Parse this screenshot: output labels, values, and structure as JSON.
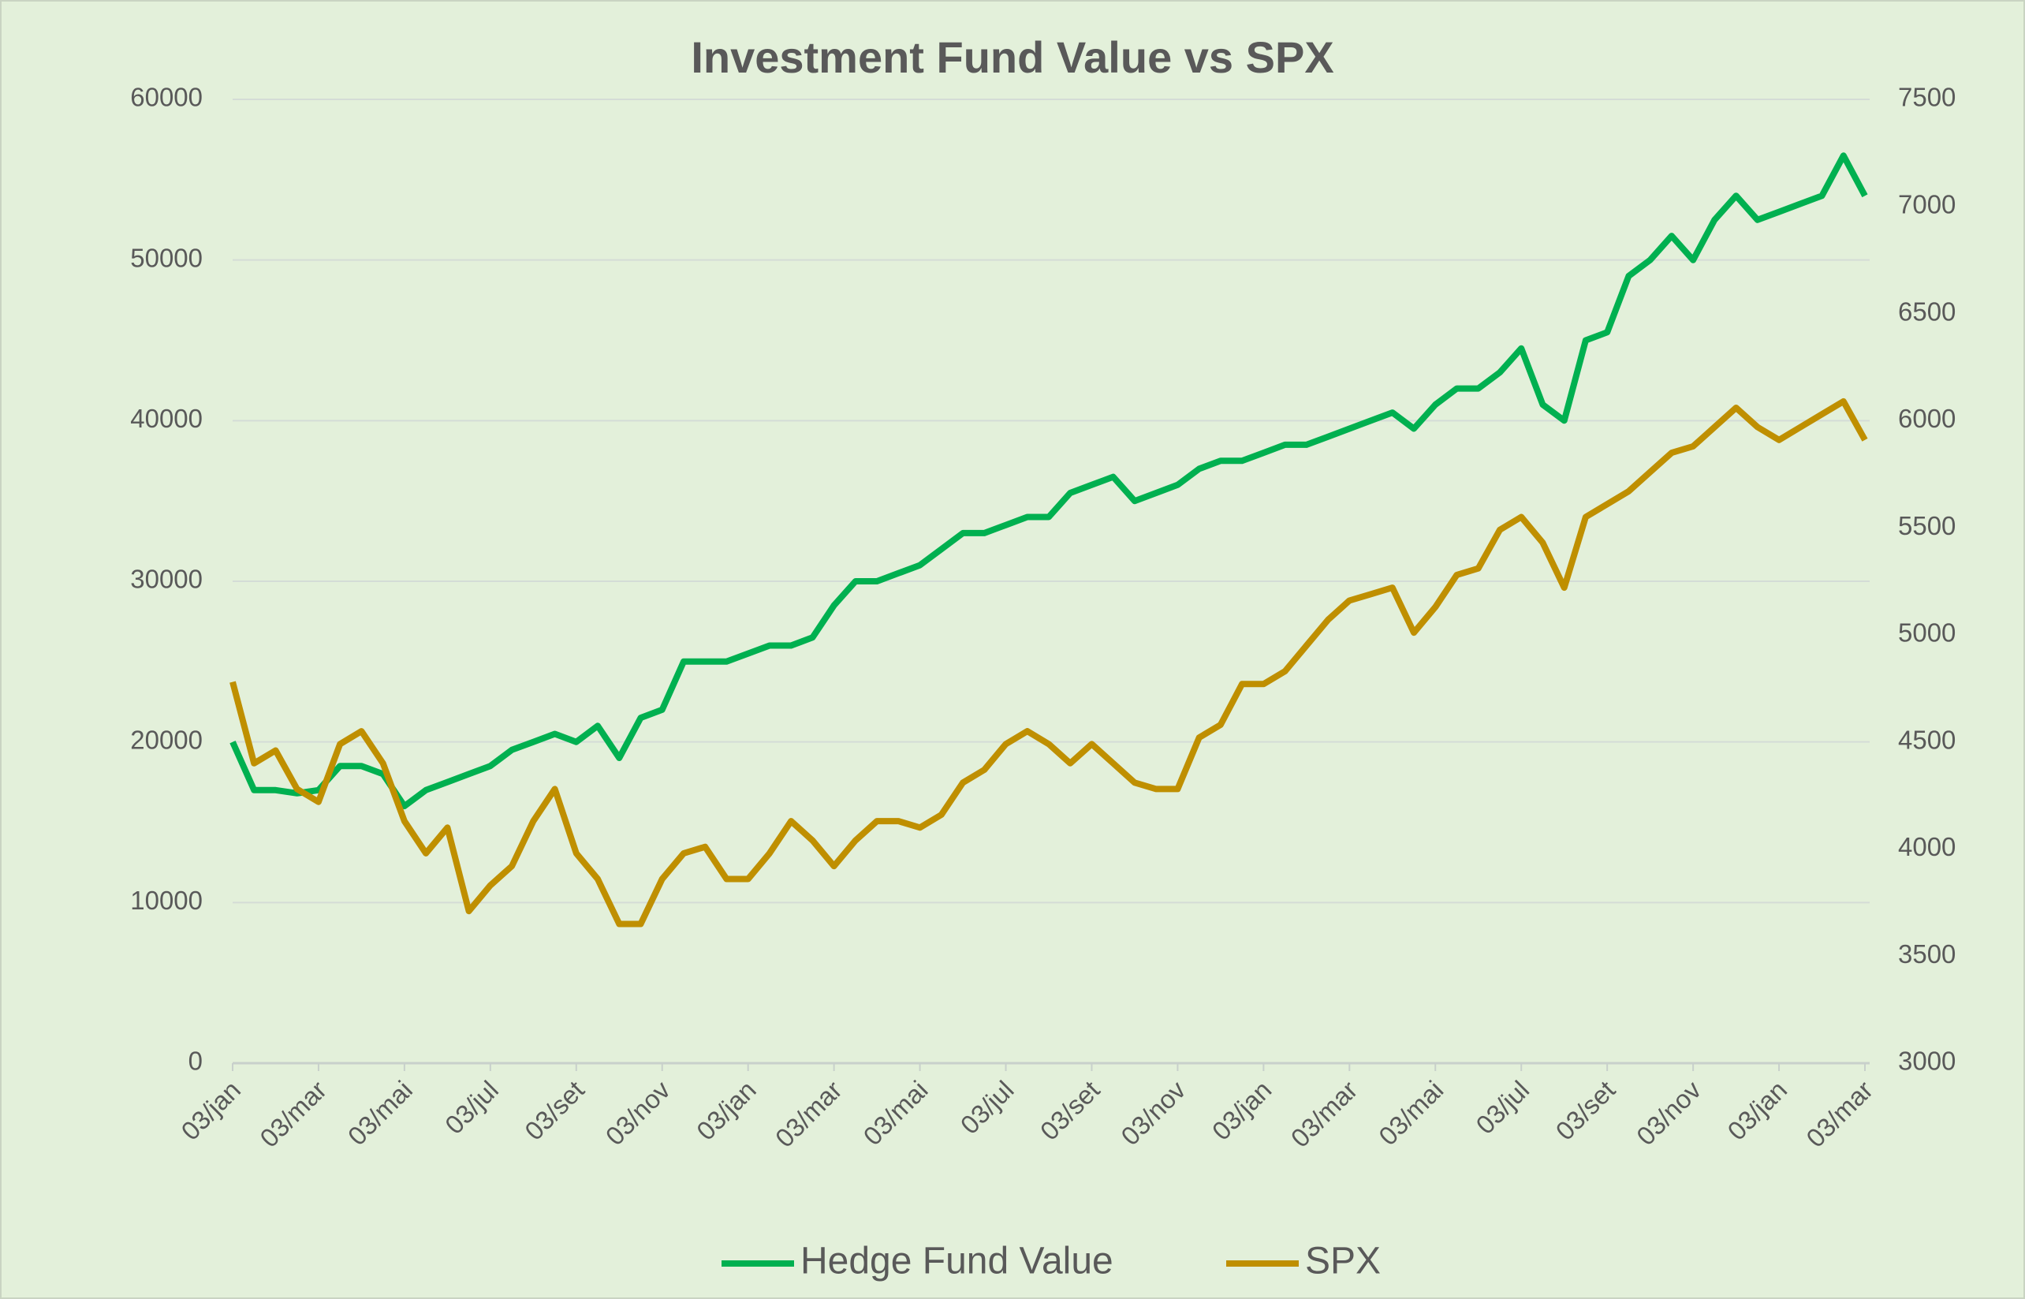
{
  "chart_data": {
    "type": "line",
    "title": "Investment Fund Value vs SPX",
    "categories": [
      "03/jan",
      null,
      null,
      null,
      "03/mar",
      null,
      null,
      null,
      "03/mai",
      null,
      null,
      null,
      "03/jul",
      null,
      null,
      null,
      "03/set",
      null,
      null,
      null,
      "03/nov",
      null,
      null,
      null,
      "03/jan",
      null,
      null,
      null,
      "03/mar",
      null,
      null,
      null,
      "03/mai",
      null,
      null,
      null,
      "03/jul",
      null,
      null,
      null,
      "03/set",
      null,
      null,
      null,
      "03/nov",
      null,
      null,
      null,
      "03/jan",
      null,
      null,
      null,
      "03/mar",
      null,
      null,
      null,
      "03/mai",
      null,
      null,
      null,
      "03/jul",
      null,
      null,
      null,
      "03/set",
      null,
      null,
      null,
      "03/nov",
      null,
      null,
      null,
      "03/jan",
      null,
      null,
      null,
      "03/mar"
    ],
    "series": [
      {
        "name": "Hedge Fund Value",
        "color": "#00b050",
        "values": [
          20000,
          17000,
          17000,
          16800,
          17000,
          18500,
          18500,
          18000,
          16000,
          17000,
          17500,
          18000,
          18500,
          19500,
          20000,
          20500,
          20000,
          21000,
          19000,
          21500,
          22000,
          25000,
          25000,
          25000,
          25500,
          26000,
          26000,
          26500,
          28500,
          30000,
          30000,
          30500,
          31000,
          32000,
          33000,
          33000,
          33500,
          34000,
          34000,
          35500,
          36000,
          36500,
          35000,
          35500,
          36000,
          37000,
          37500,
          37500,
          38000,
          38500,
          38500,
          39000,
          39500,
          40000,
          40500,
          39500,
          41000,
          42000,
          42000,
          43000,
          44500,
          41000,
          40000,
          45000,
          45500,
          49000,
          50000,
          51500,
          50000,
          52500,
          54000,
          52500,
          53000,
          53500,
          54000,
          56500,
          54000
        ]
      },
      {
        "name": "SPX",
        "color": "#bf8f00",
        "axis": "y2",
        "values": [
          4780,
          4400,
          4460,
          4280,
          4220,
          4490,
          4550,
          4400,
          4130,
          3980,
          4100,
          3710,
          3830,
          3920,
          4130,
          4280,
          3980,
          3860,
          3650,
          3650,
          3860,
          3980,
          4010,
          3860,
          3860,
          3980,
          4130,
          4040,
          3920,
          4040,
          4130,
          4130,
          4100,
          4160,
          4310,
          4370,
          4490,
          4550,
          4490,
          4400,
          4490,
          4400,
          4310,
          4280,
          4280,
          4520,
          4580,
          4770,
          4770,
          4830,
          4950,
          5070,
          5160,
          5190,
          5220,
          5010,
          5130,
          5280,
          5310,
          5490,
          5550,
          5430,
          5220,
          5550,
          5610,
          5670,
          5760,
          5850,
          5880,
          5970,
          6060,
          5970,
          5910,
          5970,
          6030,
          6090,
          5910
        ]
      }
    ],
    "ylim": [
      0,
      60000
    ],
    "yticks": [
      0,
      10000,
      20000,
      30000,
      40000,
      50000,
      60000
    ],
    "y2lim": [
      3000,
      7500
    ],
    "y2ticks": [
      3000,
      3500,
      4000,
      4500,
      5000,
      5500,
      6000,
      6500,
      7000,
      7500
    ],
    "grid": true,
    "legend": "bottom"
  }
}
